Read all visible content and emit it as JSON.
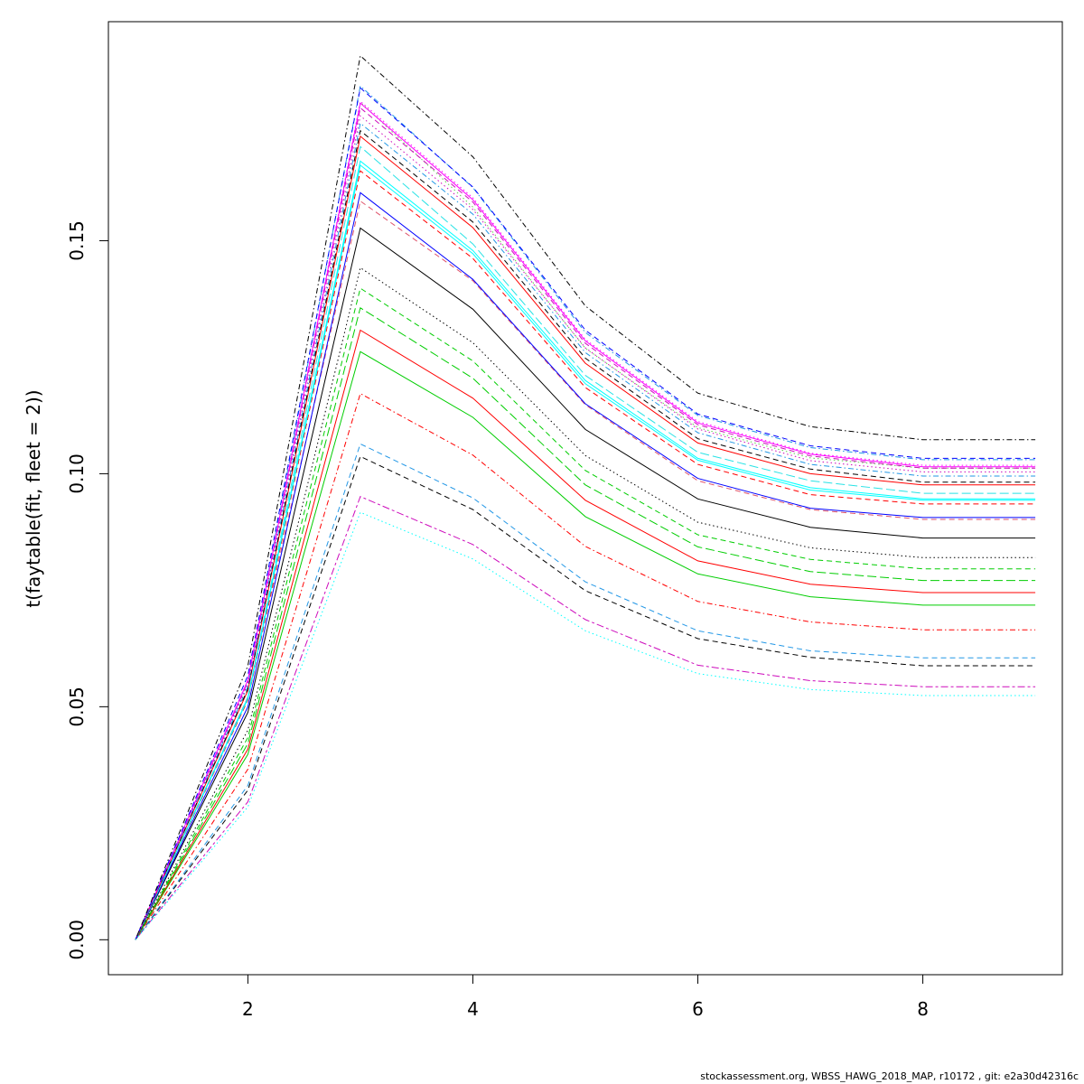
{
  "footer": "stockassessment.org, WBSS_HAWG_2018_MAP, r10172 , git: e2a30d42316c",
  "chart_data": {
    "type": "line",
    "title": "",
    "xlabel": "",
    "ylabel": "t(faytable(fit, fleet = 2))",
    "xlim": [
      0.76,
      9.24
    ],
    "ylim": [
      -0.0075,
      0.197
    ],
    "x_ticks": [
      2,
      4,
      6,
      8
    ],
    "y_ticks": [
      0.0,
      0.05,
      0.1,
      0.15
    ],
    "x_tick_labels": [
      "2",
      "4",
      "6",
      "8"
    ],
    "y_tick_labels": [
      "0.00",
      "0.05",
      "0.10",
      "0.15"
    ],
    "grid": false,
    "legend": "none",
    "x": [
      1,
      2,
      3,
      4,
      5,
      6,
      7,
      8,
      9
    ],
    "series": [
      {
        "color": "#000000",
        "dash": "solid",
        "values": [
          0,
          0.0488,
          0.1527,
          0.1353,
          0.1095,
          0.0946,
          0.0885,
          0.0862,
          0.0862
        ]
      },
      {
        "color": "#DF536B",
        "dash": "dashed",
        "values": [
          0,
          0.0521,
          0.1585,
          0.1414,
          0.1148,
          0.0985,
          0.0923,
          0.0902,
          0.0902
        ]
      },
      {
        "color": "#61D04F",
        "dash": "dotted",
        "values": [
          0,
          0.0549,
          0.1797,
          0.1572,
          0.1269,
          0.1099,
          0.1034,
          0.1012,
          0.1012
        ]
      },
      {
        "color": "#2297E6",
        "dash": "dotdash",
        "values": [
          0,
          0.0555,
          0.1832,
          0.1614,
          0.1303,
          0.1125,
          0.1056,
          0.103,
          0.103
        ]
      },
      {
        "color": "#28E2E5",
        "dash": "longdash",
        "values": [
          0,
          0.052,
          0.1702,
          0.1493,
          0.1211,
          0.1046,
          0.0985,
          0.0958,
          0.0958
        ]
      },
      {
        "color": "#CD0BBC",
        "dash": "twodash",
        "values": [
          0,
          0.0296,
          0.0951,
          0.0848,
          0.0687,
          0.0589,
          0.0556,
          0.0543,
          0.0543
        ]
      },
      {
        "color": "#000000",
        "dash": "dashed",
        "values": [
          0,
          0.0321,
          0.1037,
          0.0923,
          0.0749,
          0.0646,
          0.0606,
          0.0588,
          0.0588
        ]
      },
      {
        "color": "#2297E6",
        "dash": "dashed",
        "values": [
          0,
          0.0331,
          0.1064,
          0.0948,
          0.0768,
          0.0663,
          0.062,
          0.0605,
          0.0605
        ]
      },
      {
        "color": "#FF0000",
        "dash": "dotdash",
        "values": [
          0,
          0.0366,
          0.1172,
          0.104,
          0.0844,
          0.0726,
          0.0682,
          0.0665,
          0.0665
        ]
      },
      {
        "color": "#00CD00",
        "dash": "solid",
        "values": [
          0,
          0.0398,
          0.1262,
          0.1121,
          0.0908,
          0.0785,
          0.0736,
          0.0718,
          0.0718
        ]
      },
      {
        "color": "#FF0000",
        "dash": "solid",
        "values": [
          0,
          0.0409,
          0.1308,
          0.1162,
          0.0943,
          0.0813,
          0.0763,
          0.0745,
          0.0745
        ]
      },
      {
        "color": "#00CD00",
        "dash": "longdash",
        "values": [
          0,
          0.0421,
          0.1356,
          0.1205,
          0.0976,
          0.0843,
          0.079,
          0.0771,
          0.0771
        ]
      },
      {
        "color": "#00CD00",
        "dash": "dashed",
        "values": [
          0,
          0.0434,
          0.1398,
          0.1242,
          0.1007,
          0.0869,
          0.0816,
          0.0796,
          0.0796
        ]
      },
      {
        "color": "#000000",
        "dash": "dotted",
        "values": [
          0,
          0.045,
          0.1442,
          0.1281,
          0.1039,
          0.0896,
          0.0841,
          0.082,
          0.082
        ]
      },
      {
        "color": "#0000FF",
        "dash": "solid",
        "values": [
          0,
          0.05,
          0.1603,
          0.1417,
          0.115,
          0.099,
          0.0926,
          0.0906,
          0.0906
        ]
      },
      {
        "color": "#FF0000",
        "dash": "dashed",
        "values": [
          0,
          0.0514,
          0.165,
          0.1462,
          0.1185,
          0.102,
          0.0955,
          0.0935,
          0.0935
        ]
      },
      {
        "color": "#00FFFF",
        "dash": "solid",
        "values": [
          0,
          0.0517,
          0.1662,
          0.1472,
          0.1193,
          0.1029,
          0.0965,
          0.0943,
          0.0943
        ]
      },
      {
        "color": "#00FFFF",
        "dash": "solid",
        "values": [
          0,
          0.0519,
          0.1671,
          0.1479,
          0.12,
          0.1033,
          0.097,
          0.0946,
          0.0946
        ]
      },
      {
        "color": "#FF0000",
        "dash": "solid",
        "values": [
          0,
          0.0535,
          0.1724,
          0.1528,
          0.1237,
          0.1066,
          0.1,
          0.0976,
          0.0976
        ]
      },
      {
        "color": "#000000",
        "dash": "dashed",
        "values": [
          0,
          0.0538,
          0.1736,
          0.154,
          0.1248,
          0.1075,
          0.101,
          0.0982,
          0.0982
        ]
      },
      {
        "color": "#2297E6",
        "dash": "dotdash",
        "values": [
          0,
          0.0544,
          0.1752,
          0.1557,
          0.126,
          0.1088,
          0.102,
          0.0995,
          0.0995
        ]
      },
      {
        "color": "#CD0BBC",
        "dash": "dotted",
        "values": [
          0,
          0.0549,
          0.1768,
          0.1567,
          0.127,
          0.1096,
          0.1028,
          0.1004,
          0.1004
        ]
      },
      {
        "color": "#CD0BBC",
        "dash": "dashed",
        "values": [
          0,
          0.0554,
          0.1785,
          0.1583,
          0.128,
          0.1105,
          0.1038,
          0.1012,
          0.1012
        ]
      },
      {
        "color": "#FF00FF",
        "dash": "solid",
        "values": [
          0,
          0.0557,
          0.1795,
          0.1588,
          0.1285,
          0.1109,
          0.1042,
          0.1015,
          0.1015
        ]
      },
      {
        "color": "#FF00FF",
        "dash": "dotted",
        "values": [
          0,
          0.0558,
          0.1799,
          0.1592,
          0.1288,
          0.1112,
          0.1044,
          0.1018,
          0.1018
        ]
      },
      {
        "color": "#0000FF",
        "dash": "dashed",
        "values": [
          0,
          0.0567,
          0.1828,
          0.1615,
          0.1308,
          0.1128,
          0.106,
          0.1033,
          0.1033
        ]
      },
      {
        "color": "#000000",
        "dash": "dotdash",
        "values": [
          0,
          0.0588,
          0.1897,
          0.168,
          0.136,
          0.1173,
          0.1101,
          0.1073,
          0.1073
        ]
      },
      {
        "color": "#00FFFF",
        "dash": "dotted",
        "values": [
          0,
          0.0285,
          0.0917,
          0.0817,
          0.0663,
          0.0571,
          0.0537,
          0.0524,
          0.0524
        ]
      }
    ]
  }
}
